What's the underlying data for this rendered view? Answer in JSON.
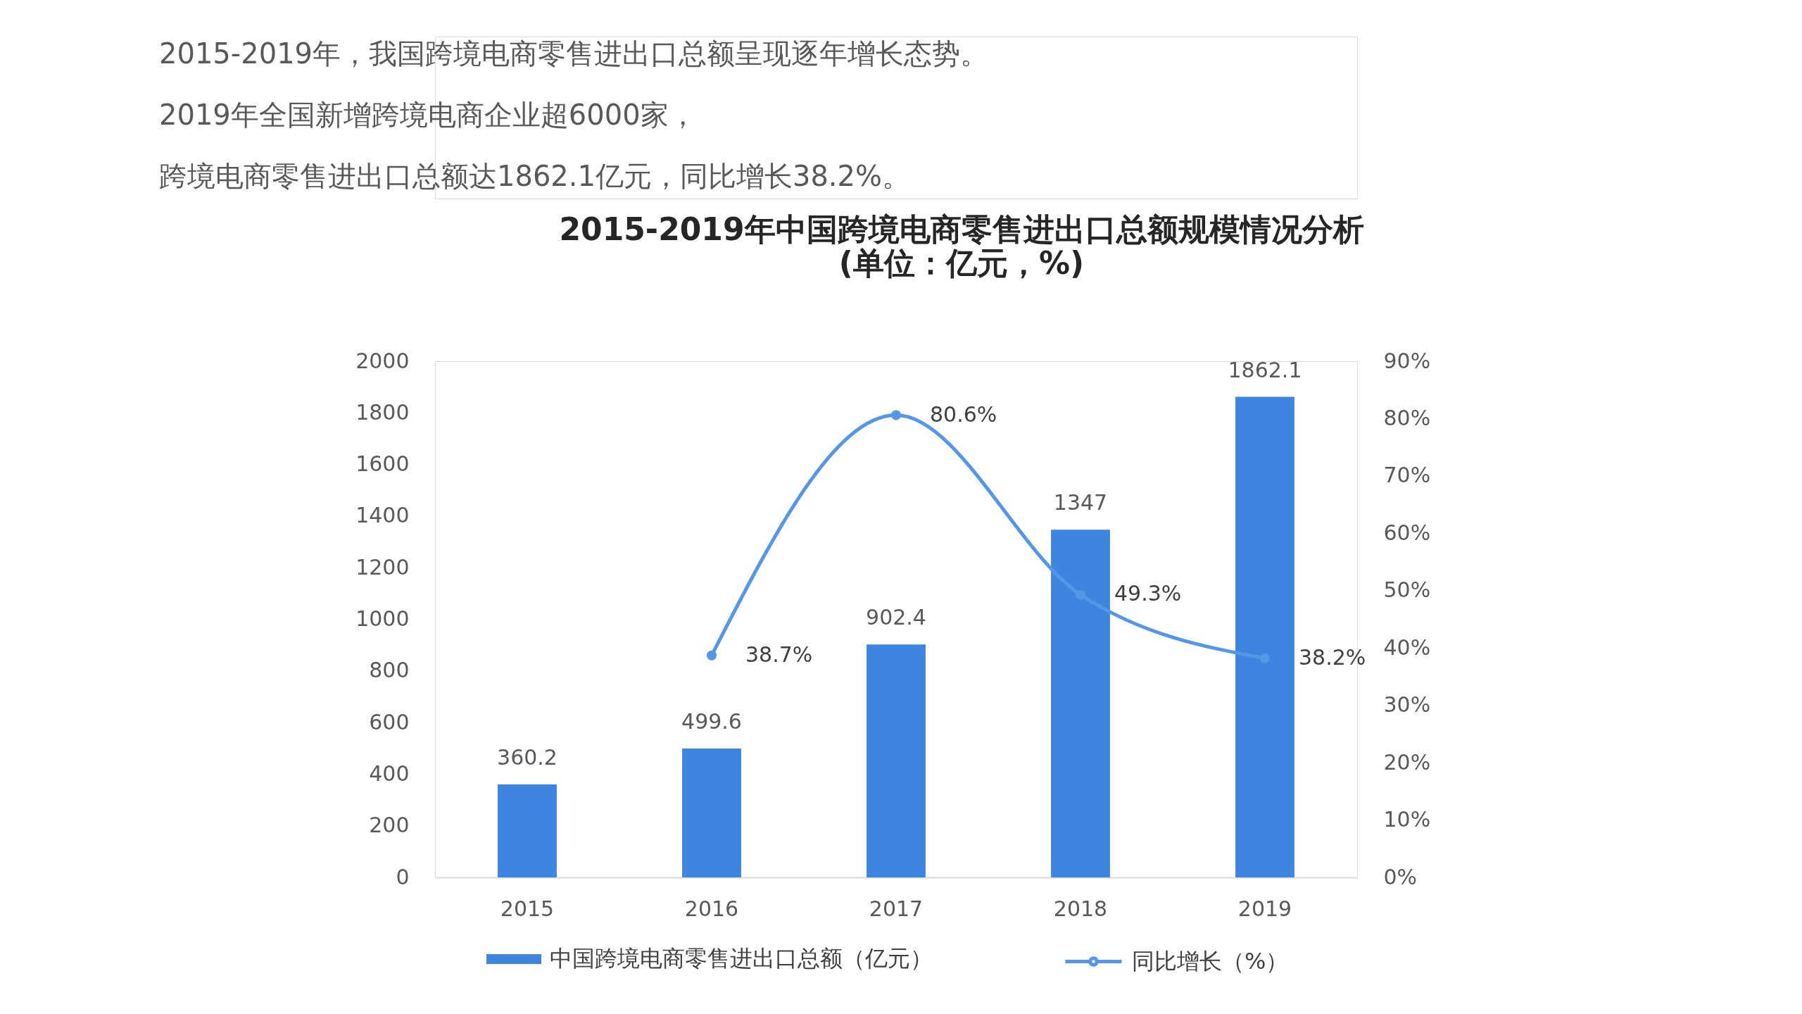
{
  "chart_data": {
    "type": "bar",
    "title": "2015-2019年中国跨境电商零售进出口总额规模情况分析",
    "subtitle": "(单位：亿元，%)",
    "annotations": [
      "2015-2019年，我国跨境电商零售进出口总额呈现逐年增长态势。",
      "2019年全国新增跨境电商企业超6000家，",
      "跨境电商零售进出口总额达1862.1亿元，同比增长38.2%。"
    ],
    "categories": [
      "2015",
      "2016",
      "2017",
      "2018",
      "2019"
    ],
    "series": [
      {
        "name": "中国跨境电商零售进出口总额（亿元）",
        "color": "#3d85de",
        "values": [
          360.2,
          499.6,
          902.4,
          1347,
          1862.1
        ],
        "value_labels": [
          "360.2",
          "499.6",
          "902.4",
          "1347",
          "1862.1"
        ]
      },
      {
        "name": "同比增长（%）",
        "type": "line",
        "axis": "y2",
        "color": "#5596e6",
        "marker": "circle",
        "values": [
          null,
          38.7,
          80.6,
          49.3,
          38.2
        ],
        "value_labels": [
          null,
          "38.7%",
          "80.6%",
          "49.3%",
          "38.2%"
        ]
      }
    ],
    "ylim": [
      0,
      2000
    ],
    "yticks": [
      0,
      200,
      400,
      600,
      800,
      1000,
      1200,
      1400,
      1600,
      1800,
      2000
    ],
    "y2lim": [
      0,
      90
    ],
    "y2ticks": [
      {
        "value": 0,
        "label": "0%"
      },
      {
        "value": 10,
        "label": "10%"
      },
      {
        "value": 20,
        "label": "20%"
      },
      {
        "value": 30,
        "label": "30%"
      },
      {
        "value": 40,
        "label": "40%"
      },
      {
        "value": 50,
        "label": "50%"
      },
      {
        "value": 60,
        "label": "60%"
      },
      {
        "value": 70,
        "label": "70%"
      },
      {
        "value": 80,
        "label": "80%"
      },
      {
        "value": 90,
        "label": "90%"
      }
    ],
    "grid": false,
    "legend": "bottom"
  }
}
